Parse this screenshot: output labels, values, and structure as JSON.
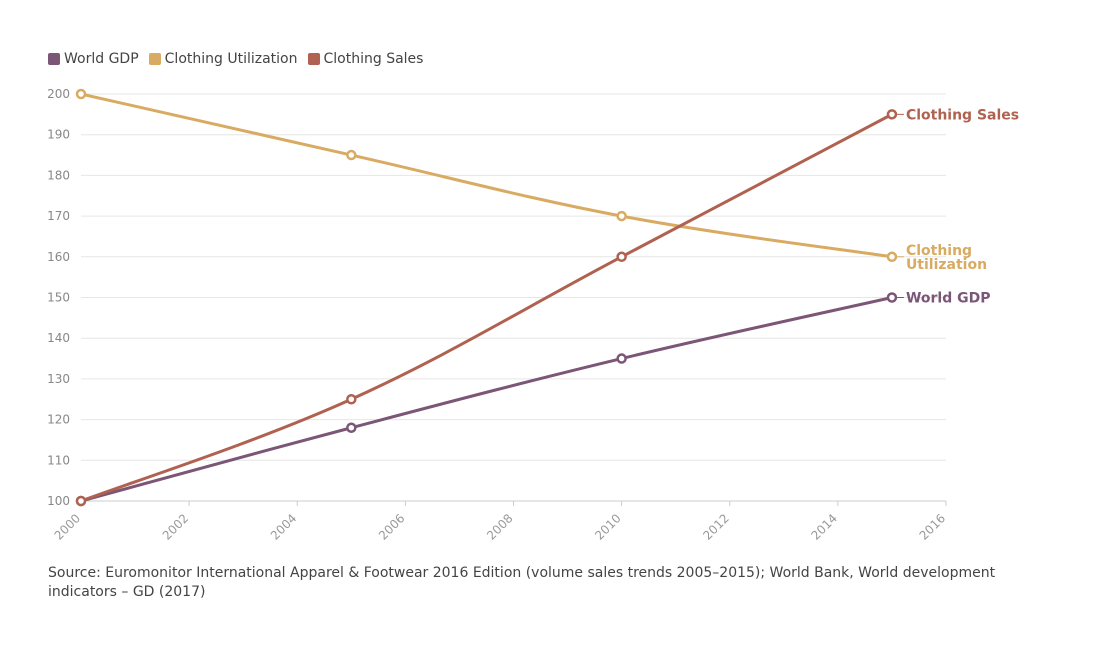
{
  "chart_data": {
    "type": "line",
    "x": [
      2000,
      2005,
      2010,
      2015
    ],
    "series": [
      {
        "name": "World GDP",
        "label": "World GDP",
        "color": "#7b5676",
        "values": [
          100,
          118,
          135,
          150
        ]
      },
      {
        "name": "Clothing Utilization",
        "label": "Clothing Utilization",
        "color": "#d9ab62",
        "values": [
          200,
          185,
          170,
          160
        ]
      },
      {
        "name": "Clothing Sales",
        "label": "Clothing Sales",
        "color": "#b0614f",
        "values": [
          100,
          125,
          160,
          195
        ]
      }
    ],
    "xlim": [
      2000,
      2016
    ],
    "ylim": [
      100,
      200
    ],
    "xticks": [
      "2000",
      "2002",
      "2004",
      "2006",
      "2008",
      "2010",
      "2012",
      "2014",
      "2016"
    ],
    "yticks": [
      "100",
      "110",
      "120",
      "130",
      "140",
      "150",
      "160",
      "170",
      "180",
      "190",
      "200"
    ],
    "grid": true,
    "legend_position": "top-left"
  },
  "source": "Source: Euromonitor International Apparel & Footwear 2016 Edition (volume sales trends 2005–2015); World Bank, World development indicators – GD (2017)"
}
